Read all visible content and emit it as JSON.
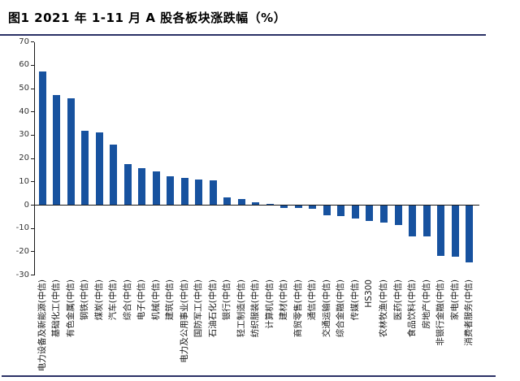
{
  "figure": {
    "title": "图1 2021 年 1-11 月 A 股各板块涨跌幅（%）"
  },
  "chart_data": {
    "type": "bar",
    "title": "2021 年 1-11 月 A 股各板块涨跌幅（%）",
    "xlabel": "",
    "ylabel": "",
    "ylim": [
      -30,
      70
    ],
    "ytick_step": 10,
    "grid": false,
    "legend": "none",
    "bar_color": "#17529f",
    "axis_color": "#1a1a1a",
    "categories": [
      "电力设备及新能源(中信)",
      "基础化工(中信)",
      "有色金属(中信)",
      "钢铁(中信)",
      "煤炭(中信)",
      "汽车(中信)",
      "综合(中信)",
      "电子(中信)",
      "机械(中信)",
      "建筑(中信)",
      "电力及公用事业(中信)",
      "国防军工(中信)",
      "石油石化(中信)",
      "银行(中信)",
      "轻工制造(中信)",
      "纺织服装(中信)",
      "计算机(中信)",
      "建材(中信)",
      "商贸零售(中信)",
      "通信(中信)",
      "交通运输(中信)",
      "综合金融(中信)",
      "传媒(中信)",
      "HS300",
      "农林牧渔(中信)",
      "医药(中信)",
      "食品饮料(中信)",
      "房地产(中信)",
      "非银行金融(中信)",
      "家电(中信)",
      "消费者服务(中信)"
    ],
    "values": [
      57.2,
      47.2,
      45.9,
      31.8,
      31.3,
      25.8,
      17.5,
      16.0,
      14.6,
      12.5,
      11.6,
      11.1,
      10.7,
      3.3,
      2.6,
      1.1,
      0.4,
      -1.3,
      -1.2,
      -1.7,
      -4.2,
      -4.6,
      -5.9,
      -6.7,
      -7.6,
      -8.6,
      -13.3,
      -13.5,
      -21.8,
      -22.1,
      -24.5
    ]
  }
}
